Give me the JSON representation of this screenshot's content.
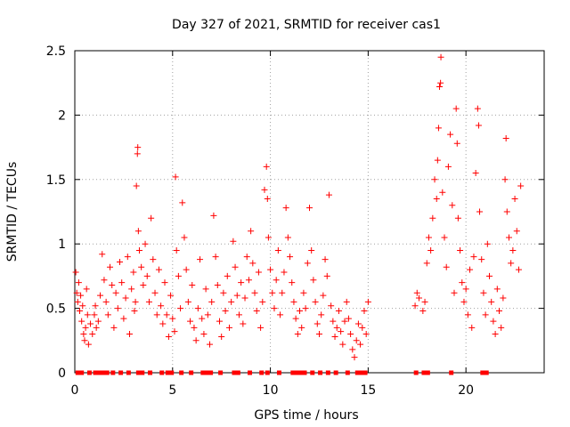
{
  "chart_data": {
    "type": "scatter",
    "title": "Day 327 of 2021, SRMTID for receiver cas1",
    "xlabel": "GPS time / hours",
    "ylabel": "SRMTID / TECUs",
    "xlim": [
      0,
      24
    ],
    "ylim": [
      0,
      2.5
    ],
    "xticks": [
      0,
      5,
      10,
      15,
      20
    ],
    "yticks": [
      0,
      0.5,
      1,
      1.5,
      2,
      2.5
    ],
    "xtick_labels": [
      "0",
      "5",
      "10",
      "15",
      "20"
    ],
    "ytick_labels": [
      "0",
      "0.5",
      "1",
      "1.5",
      "2",
      "2.5"
    ],
    "grid": true,
    "marker": "plus",
    "series_color": "#ff0000",
    "series": [
      {
        "name": "SRMTID",
        "points": [
          [
            0.05,
            0.78
          ],
          [
            0.1,
            0.62
          ],
          [
            0.15,
            0.55
          ],
          [
            0.2,
            0.7
          ],
          [
            0.25,
            0.48
          ],
          [
            0.3,
            0.6
          ],
          [
            0.35,
            0.4
          ],
          [
            0.4,
            0.52
          ],
          [
            0.45,
            0.3
          ],
          [
            0.5,
            0.25
          ],
          [
            0.55,
            0.35
          ],
          [
            0.6,
            0.65
          ],
          [
            0.65,
            0.45
          ],
          [
            0.7,
            0.22
          ],
          [
            0.8,
            0.38
          ],
          [
            0.9,
            0.3
          ],
          [
            1.0,
            0.45
          ],
          [
            1.05,
            0.52
          ],
          [
            1.1,
            0.35
          ],
          [
            1.2,
            0.4
          ],
          [
            1.3,
            0.6
          ],
          [
            1.4,
            0.92
          ],
          [
            1.5,
            0.72
          ],
          [
            1.6,
            0.55
          ],
          [
            1.7,
            0.45
          ],
          [
            1.8,
            0.82
          ],
          [
            1.9,
            0.68
          ],
          [
            2.0,
            0.35
          ],
          [
            2.1,
            0.62
          ],
          [
            2.2,
            0.5
          ],
          [
            2.3,
            0.86
          ],
          [
            2.4,
            0.7
          ],
          [
            2.5,
            0.42
          ],
          [
            2.6,
            0.58
          ],
          [
            2.7,
            0.9
          ],
          [
            2.8,
            0.3
          ],
          [
            2.9,
            0.65
          ],
          [
            3.0,
            0.78
          ],
          [
            3.05,
            0.48
          ],
          [
            3.1,
            0.55
          ],
          [
            3.15,
            1.45
          ],
          [
            3.2,
            1.7
          ],
          [
            3.22,
            1.75
          ],
          [
            3.25,
            1.1
          ],
          [
            3.3,
            0.95
          ],
          [
            3.4,
            0.82
          ],
          [
            3.5,
            0.68
          ],
          [
            3.6,
            1.0
          ],
          [
            3.7,
            0.75
          ],
          [
            3.8,
            0.55
          ],
          [
            3.9,
            1.2
          ],
          [
            4.0,
            0.88
          ],
          [
            4.1,
            0.62
          ],
          [
            4.2,
            0.45
          ],
          [
            4.3,
            0.8
          ],
          [
            4.4,
            0.52
          ],
          [
            4.5,
            0.38
          ],
          [
            4.6,
            0.7
          ],
          [
            4.7,
            0.45
          ],
          [
            4.8,
            0.28
          ],
          [
            4.9,
            0.6
          ],
          [
            5.0,
            0.42
          ],
          [
            5.1,
            0.32
          ],
          [
            5.15,
            1.52
          ],
          [
            5.2,
            0.95
          ],
          [
            5.3,
            0.75
          ],
          [
            5.4,
            0.5
          ],
          [
            5.5,
            1.32
          ],
          [
            5.6,
            1.05
          ],
          [
            5.7,
            0.8
          ],
          [
            5.8,
            0.55
          ],
          [
            5.9,
            0.4
          ],
          [
            6.0,
            0.68
          ],
          [
            6.1,
            0.35
          ],
          [
            6.2,
            0.25
          ],
          [
            6.3,
            0.5
          ],
          [
            6.4,
            0.88
          ],
          [
            6.5,
            0.42
          ],
          [
            6.6,
            0.3
          ],
          [
            6.7,
            0.65
          ],
          [
            6.8,
            0.45
          ],
          [
            6.9,
            0.22
          ],
          [
            7.0,
            0.55
          ],
          [
            7.1,
            1.22
          ],
          [
            7.2,
            0.9
          ],
          [
            7.3,
            0.68
          ],
          [
            7.4,
            0.4
          ],
          [
            7.5,
            0.28
          ],
          [
            7.6,
            0.62
          ],
          [
            7.7,
            0.48
          ],
          [
            7.8,
            0.75
          ],
          [
            7.9,
            0.35
          ],
          [
            8.0,
            0.55
          ],
          [
            8.1,
            1.02
          ],
          [
            8.2,
            0.82
          ],
          [
            8.3,
            0.6
          ],
          [
            8.4,
            0.45
          ],
          [
            8.5,
            0.7
          ],
          [
            8.6,
            0.38
          ],
          [
            8.7,
            0.58
          ],
          [
            8.8,
            0.9
          ],
          [
            8.9,
            0.72
          ],
          [
            9.0,
            1.1
          ],
          [
            9.1,
            0.85
          ],
          [
            9.2,
            0.62
          ],
          [
            9.3,
            0.48
          ],
          [
            9.4,
            0.78
          ],
          [
            9.5,
            0.35
          ],
          [
            9.6,
            0.55
          ],
          [
            9.7,
            1.42
          ],
          [
            9.8,
            1.6
          ],
          [
            9.85,
            1.35
          ],
          [
            9.9,
            1.05
          ],
          [
            10.0,
            0.8
          ],
          [
            10.1,
            0.62
          ],
          [
            10.2,
            0.5
          ],
          [
            10.3,
            0.72
          ],
          [
            10.4,
            0.95
          ],
          [
            10.5,
            0.45
          ],
          [
            10.6,
            0.62
          ],
          [
            10.7,
            0.78
          ],
          [
            10.8,
            1.28
          ],
          [
            10.9,
            1.05
          ],
          [
            11.0,
            0.9
          ],
          [
            11.1,
            0.7
          ],
          [
            11.2,
            0.55
          ],
          [
            11.3,
            0.42
          ],
          [
            11.4,
            0.3
          ],
          [
            11.5,
            0.48
          ],
          [
            11.6,
            0.35
          ],
          [
            11.7,
            0.62
          ],
          [
            11.8,
            0.5
          ],
          [
            11.9,
            0.85
          ],
          [
            12.0,
            1.28
          ],
          [
            12.1,
            0.95
          ],
          [
            12.2,
            0.72
          ],
          [
            12.3,
            0.55
          ],
          [
            12.4,
            0.38
          ],
          [
            12.5,
            0.3
          ],
          [
            12.6,
            0.45
          ],
          [
            12.7,
            0.6
          ],
          [
            12.8,
            0.88
          ],
          [
            12.9,
            0.75
          ],
          [
            13.0,
            1.38
          ],
          [
            13.1,
            0.52
          ],
          [
            13.2,
            0.4
          ],
          [
            13.3,
            0.28
          ],
          [
            13.4,
            0.35
          ],
          [
            13.5,
            0.48
          ],
          [
            13.6,
            0.32
          ],
          [
            13.7,
            0.22
          ],
          [
            13.8,
            0.4
          ],
          [
            13.9,
            0.55
          ],
          [
            14.0,
            0.42
          ],
          [
            14.1,
            0.3
          ],
          [
            14.2,
            0.18
          ],
          [
            14.3,
            0.12
          ],
          [
            14.4,
            0.25
          ],
          [
            14.5,
            0.38
          ],
          [
            14.6,
            0.22
          ],
          [
            14.7,
            0.35
          ],
          [
            14.8,
            0.48
          ],
          [
            14.9,
            0.3
          ],
          [
            15.0,
            0.55
          ],
          [
            17.4,
            0.52
          ],
          [
            17.5,
            0.62
          ],
          [
            17.6,
            0.58
          ],
          [
            17.8,
            0.48
          ],
          [
            17.9,
            0.55
          ],
          [
            18.0,
            0.85
          ],
          [
            18.1,
            1.05
          ],
          [
            18.2,
            0.95
          ],
          [
            18.3,
            1.2
          ],
          [
            18.4,
            1.5
          ],
          [
            18.5,
            1.35
          ],
          [
            18.55,
            1.65
          ],
          [
            18.6,
            1.9
          ],
          [
            18.65,
            2.22
          ],
          [
            18.7,
            2.25
          ],
          [
            18.72,
            2.45
          ],
          [
            18.8,
            1.4
          ],
          [
            18.9,
            1.05
          ],
          [
            19.0,
            0.82
          ],
          [
            19.1,
            1.6
          ],
          [
            19.2,
            1.85
          ],
          [
            19.3,
            1.3
          ],
          [
            19.4,
            0.62
          ],
          [
            19.5,
            2.05
          ],
          [
            19.55,
            1.78
          ],
          [
            19.6,
            1.2
          ],
          [
            19.7,
            0.95
          ],
          [
            19.8,
            0.7
          ],
          [
            19.9,
            0.55
          ],
          [
            20.0,
            0.65
          ],
          [
            20.1,
            0.45
          ],
          [
            20.2,
            0.8
          ],
          [
            20.3,
            0.35
          ],
          [
            20.4,
            0.9
          ],
          [
            20.5,
            1.55
          ],
          [
            20.6,
            2.05
          ],
          [
            20.65,
            1.92
          ],
          [
            20.7,
            1.25
          ],
          [
            20.8,
            0.88
          ],
          [
            20.9,
            0.62
          ],
          [
            21.0,
            0.45
          ],
          [
            21.1,
            1.0
          ],
          [
            21.2,
            0.75
          ],
          [
            21.3,
            0.55
          ],
          [
            21.4,
            0.4
          ],
          [
            21.5,
            0.3
          ],
          [
            21.6,
            0.65
          ],
          [
            21.7,
            0.48
          ],
          [
            21.8,
            0.35
          ],
          [
            21.9,
            0.58
          ],
          [
            22.0,
            1.5
          ],
          [
            22.05,
            1.82
          ],
          [
            22.1,
            1.25
          ],
          [
            22.2,
            1.05
          ],
          [
            22.3,
            0.85
          ],
          [
            22.4,
            0.95
          ],
          [
            22.5,
            1.35
          ],
          [
            22.6,
            1.1
          ],
          [
            22.7,
            0.8
          ],
          [
            22.8,
            1.45
          ]
        ]
      },
      {
        "name": "zero values",
        "points": [
          [
            0.15,
            0
          ],
          [
            0.35,
            0
          ],
          [
            0.75,
            0
          ],
          [
            1.05,
            0
          ],
          [
            1.25,
            0
          ],
          [
            1.45,
            0
          ],
          [
            1.65,
            0
          ],
          [
            1.95,
            0
          ],
          [
            2.35,
            0
          ],
          [
            2.75,
            0
          ],
          [
            3.25,
            0
          ],
          [
            3.45,
            0
          ],
          [
            3.85,
            0
          ],
          [
            4.45,
            0
          ],
          [
            4.75,
            0
          ],
          [
            4.95,
            0
          ],
          [
            5.45,
            0
          ],
          [
            5.95,
            0
          ],
          [
            6.55,
            0
          ],
          [
            6.75,
            0
          ],
          [
            6.95,
            0
          ],
          [
            7.45,
            0
          ],
          [
            8.15,
            0
          ],
          [
            8.35,
            0
          ],
          [
            8.95,
            0
          ],
          [
            9.55,
            0
          ],
          [
            9.85,
            0
          ],
          [
            10.45,
            0
          ],
          [
            11.15,
            0
          ],
          [
            11.35,
            0
          ],
          [
            11.55,
            0
          ],
          [
            11.75,
            0
          ],
          [
            12.15,
            0
          ],
          [
            12.55,
            0
          ],
          [
            12.95,
            0
          ],
          [
            13.35,
            0
          ],
          [
            13.95,
            0
          ],
          [
            14.45,
            0
          ],
          [
            14.65,
            0
          ],
          [
            14.85,
            0
          ],
          [
            17.45,
            0
          ],
          [
            17.85,
            0
          ],
          [
            18.05,
            0
          ],
          [
            19.25,
            0
          ],
          [
            20.85,
            0
          ],
          [
            21.05,
            0
          ]
        ]
      }
    ]
  }
}
